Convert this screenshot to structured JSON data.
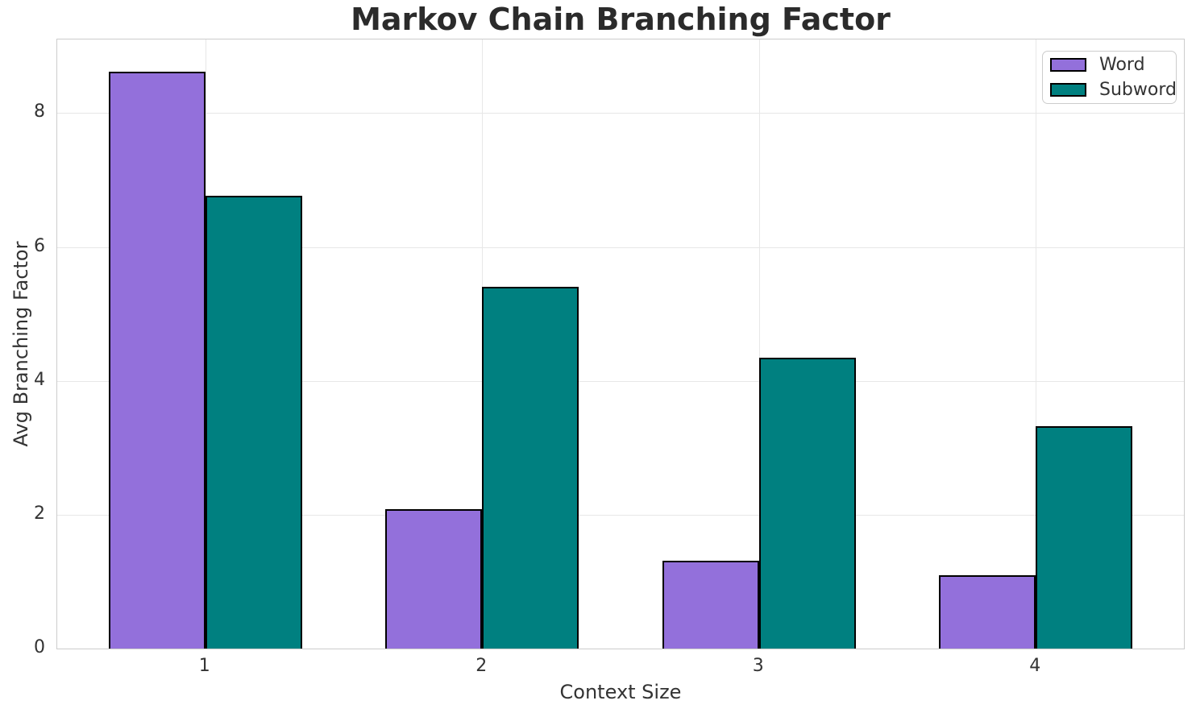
{
  "chart_data": {
    "type": "bar",
    "title": "Markov Chain Branching Factor",
    "xlabel": "Context Size",
    "ylabel": "Avg Branching Factor",
    "categories": [
      "1",
      "2",
      "3",
      "4"
    ],
    "series": [
      {
        "name": "Word",
        "color": "#9370DB",
        "values": [
          8.62,
          2.08,
          1.31,
          1.1
        ]
      },
      {
        "name": "Subword",
        "color": "#008080",
        "values": [
          6.76,
          5.41,
          4.34,
          3.32
        ]
      }
    ],
    "bar_width": 0.35,
    "bar_edge_color": "#000000",
    "ylim": [
      0,
      9.1
    ],
    "xlim": [
      0.465,
      4.535
    ],
    "yticks": [
      "0",
      "2",
      "4",
      "6",
      "8"
    ],
    "grid": true,
    "grid_color": "#e7e7e7",
    "spine_color": "#cccccc",
    "text_color": "#333333",
    "legend_position": "upper right"
  }
}
